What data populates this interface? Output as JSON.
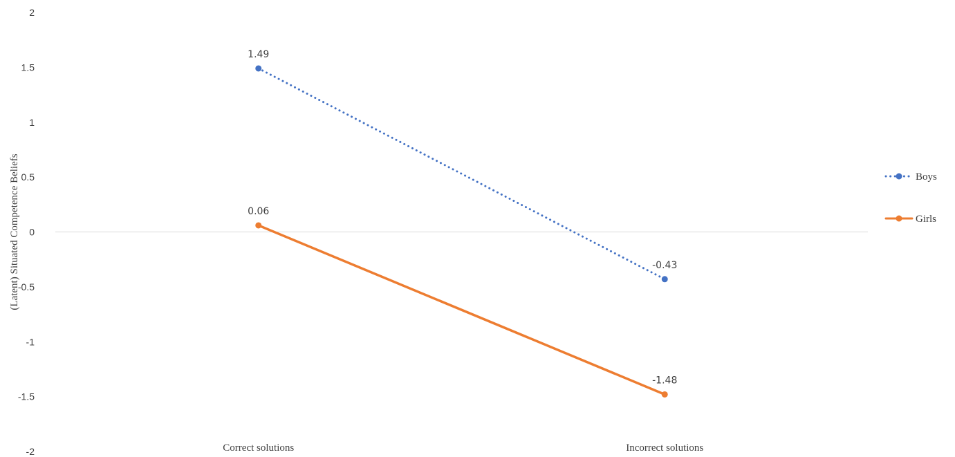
{
  "chart_data": {
    "type": "line",
    "title": "",
    "xlabel": "",
    "ylabel": "(Latent) Situated Competence Beliefs",
    "categories": [
      "Correct solutions",
      "Incorrect solutions"
    ],
    "ylim": [
      -2,
      2
    ],
    "yticks": [
      "2",
      "1.5",
      "1",
      "0.5",
      "0",
      "-0.5",
      "-1",
      "-1.5",
      "-2"
    ],
    "ytick_values": [
      2,
      1.5,
      1,
      0.5,
      0,
      -0.5,
      -1,
      -1.5,
      -2
    ],
    "grid": false,
    "zero_line": true,
    "legend_position": "right",
    "series": [
      {
        "name": "Boys",
        "values": [
          1.49,
          -0.43
        ],
        "labels": [
          "1.49",
          "-0.43"
        ],
        "color": "#4472C4",
        "line_style": "dotted"
      },
      {
        "name": "Girls",
        "values": [
          0.06,
          -1.48
        ],
        "labels": [
          "0.06",
          "-1.48"
        ],
        "color": "#ED7D31",
        "line_style": "solid"
      }
    ]
  }
}
